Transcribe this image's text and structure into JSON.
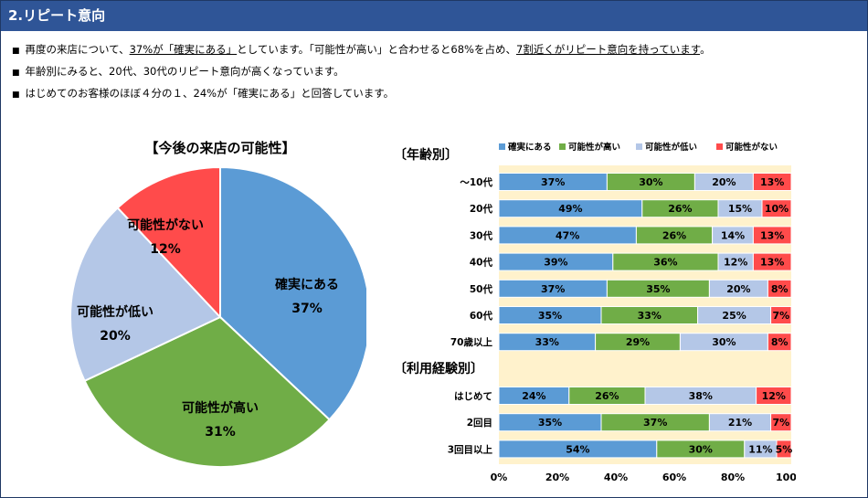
{
  "header": {
    "title": "2.リピート意向"
  },
  "bullets": [
    {
      "parts": [
        {
          "text": "再度の来店について、"
        },
        {
          "text": "37%が「確実にある」",
          "underline": true
        },
        {
          "text": "としています。「可能性が高い」と合わせると68%を占め、"
        },
        {
          "text": "7割近くがリピート意向を持っています",
          "underline": true
        },
        {
          "text": "。"
        }
      ]
    },
    {
      "parts": [
        {
          "text": "年齢別にみると、20代、30代のリピート意向が高くなっています。"
        }
      ]
    },
    {
      "parts": [
        {
          "text": "はじめてのお客様のほぼ４分の１、24%が「確実にある」と回答しています。"
        }
      ]
    }
  ],
  "bullet_mark": "■",
  "chart_data": [
    {
      "type": "pie",
      "title": "【今後の来店の可能性】",
      "slices": [
        {
          "label": "確実にある",
          "value": 37,
          "display": "37%",
          "color": "#5b9bd5"
        },
        {
          "label": "可能性が高い",
          "value": 31,
          "display": "31%",
          "color": "#70ad47"
        },
        {
          "label": "可能性が低い",
          "value": 20,
          "display": "20%",
          "color": "#b4c7e7"
        },
        {
          "label": "可能性がない",
          "value": 12,
          "display": "12%",
          "color": "#ff4b4b"
        }
      ]
    },
    {
      "type": "bar",
      "orientation": "horizontal",
      "stacked": "percent",
      "legend_position": "top",
      "xlim": [
        0,
        100
      ],
      "x_ticks": [
        "0%",
        "20%",
        "40%",
        "60%",
        "80%",
        "100%"
      ],
      "series": [
        {
          "name": "確実にある",
          "color": "#5b9bd5"
        },
        {
          "name": "可能性が高い",
          "color": "#70ad47"
        },
        {
          "name": "可能性が低い",
          "color": "#b4c7e7"
        },
        {
          "name": "可能性がない",
          "color": "#ff4b4b"
        }
      ],
      "groups": [
        {
          "title": "〔年齢別〕",
          "rows": [
            {
              "label": "～10代",
              "values": [
                37,
                30,
                20,
                13
              ]
            },
            {
              "label": "20代",
              "values": [
                49,
                26,
                15,
                10
              ]
            },
            {
              "label": "30代",
              "values": [
                47,
                26,
                14,
                13
              ]
            },
            {
              "label": "40代",
              "values": [
                39,
                36,
                12,
                13
              ]
            },
            {
              "label": "50代",
              "values": [
                37,
                35,
                20,
                8
              ]
            },
            {
              "label": "60代",
              "values": [
                35,
                33,
                25,
                7
              ]
            },
            {
              "label": "70歳以上",
              "values": [
                33,
                29,
                30,
                8
              ]
            }
          ]
        },
        {
          "title": "〔利用経験別〕",
          "rows": [
            {
              "label": "はじめて",
              "values": [
                24,
                26,
                38,
                12
              ]
            },
            {
              "label": "2回目",
              "values": [
                35,
                37,
                21,
                7
              ]
            },
            {
              "label": "3回目以上",
              "values": [
                54,
                30,
                11,
                5
              ]
            }
          ]
        }
      ]
    }
  ],
  "colors": {
    "title_bar": "#2f5597",
    "plot_background": "#fff2cc",
    "slice_border": "#ffffff"
  }
}
